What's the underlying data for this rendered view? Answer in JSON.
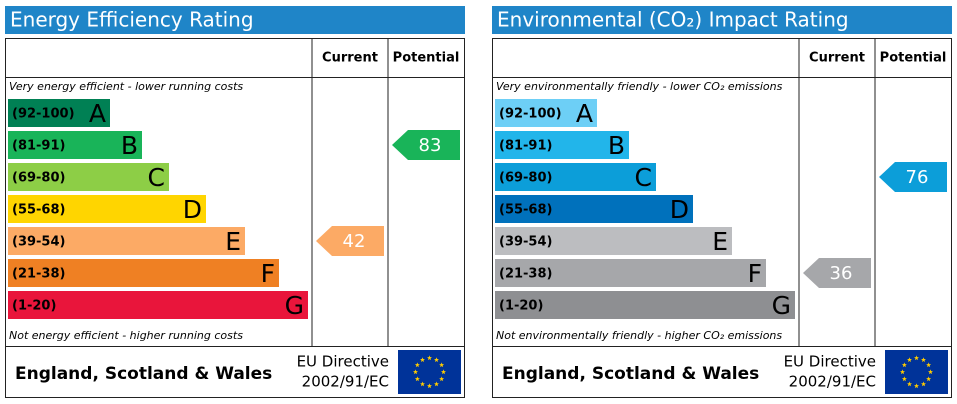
{
  "panels": [
    {
      "title": "Energy Efficiency Rating",
      "headers": {
        "current": "Current",
        "potential": "Potential"
      },
      "top_note": "Very energy efficient - lower running costs",
      "bottom_note": "Not energy efficient - higher running costs",
      "bands": [
        {
          "range": "(92-100)",
          "letter": "A",
          "color": "#008054"
        },
        {
          "range": "(81-91)",
          "letter": "B",
          "color": "#19b459"
        },
        {
          "range": "(69-80)",
          "letter": "C",
          "color": "#8dce46"
        },
        {
          "range": "(55-68)",
          "letter": "D",
          "color": "#ffd500"
        },
        {
          "range": "(39-54)",
          "letter": "E",
          "color": "#fcaa65"
        },
        {
          "range": "(21-38)",
          "letter": "F",
          "color": "#ef8023"
        },
        {
          "range": "(1-20)",
          "letter": "G",
          "color": "#e9153b"
        }
      ],
      "current": 42,
      "potential": 83,
      "footer": {
        "region": "England, Scotland & Wales",
        "directive": [
          "EU Directive",
          "2002/91/EC"
        ]
      }
    },
    {
      "title": "Environmental (CO₂) Impact Rating",
      "headers": {
        "current": "Current",
        "potential": "Potential"
      },
      "top_note": "Very environmentally friendly - lower CO₂ emissions",
      "bottom_note": "Not environmentally friendly - higher CO₂ emissions",
      "bands": [
        {
          "range": "(92-100)",
          "letter": "A",
          "color": "#6dcff6"
        },
        {
          "range": "(81-91)",
          "letter": "B",
          "color": "#22b5ea"
        },
        {
          "range": "(69-80)",
          "letter": "C",
          "color": "#0c9ed9"
        },
        {
          "range": "(55-68)",
          "letter": "D",
          "color": "#0071bc"
        },
        {
          "range": "(39-54)",
          "letter": "E",
          "color": "#bcbdc0"
        },
        {
          "range": "(21-38)",
          "letter": "F",
          "color": "#a6a7aa"
        },
        {
          "range": "(1-20)",
          "letter": "G",
          "color": "#8e8f92"
        }
      ],
      "current": 36,
      "potential": 76,
      "footer": {
        "region": "England, Scotland & Wales",
        "directive": [
          "EU Directive",
          "2002/91/EC"
        ]
      }
    }
  ]
}
